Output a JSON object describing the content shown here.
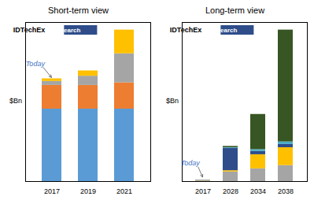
{
  "chart_data": [
    {
      "type": "bar",
      "stacked": true,
      "title": "Short-term view",
      "ylabel": "$Bn",
      "categories": [
        "2017",
        "2019",
        "2021"
      ],
      "series": [
        {
          "color": "#5B9BD5",
          "values": [
            5.5,
            5.5,
            5.5
          ]
        },
        {
          "color": "#ED7D31",
          "values": [
            1.8,
            1.8,
            2.0
          ]
        },
        {
          "color": "#A5A5A5",
          "values": [
            0.3,
            0.7,
            2.2
          ]
        },
        {
          "color": "#FFC000",
          "values": [
            0.2,
            0.4,
            1.8
          ]
        }
      ],
      "ylim": [
        0,
        12.075
      ],
      "tick_labels": "x",
      "grid": false,
      "annotations": [
        {
          "text": "Today",
          "x": "2017",
          "y": 7.8,
          "color": "#4472C4"
        },
        {
          "text": "IDTechEx"
        },
        {
          "text": "Research",
          "color": "#2E4D8A"
        }
      ]
    },
    {
      "type": "bar",
      "stacked": true,
      "title": "Long-term view",
      "ylabel": "$Bn",
      "categories": [
        "2017",
        "2028",
        "2034",
        "2038"
      ],
      "series": [
        {
          "color": "#A5A5A5",
          "values": [
            0.1,
            1.5,
            2.0,
            2.5
          ]
        },
        {
          "color": "#FFC000",
          "values": [
            0.05,
            0.2,
            2.2,
            2.8
          ]
        },
        {
          "color": "#2E4D8A",
          "values": [
            0.05,
            3.5,
            0.5,
            0.5
          ]
        },
        {
          "color": "#4BACC6",
          "values": [
            0.0,
            0.1,
            0.3,
            0.4
          ]
        },
        {
          "color": "#375623",
          "values": [
            0.0,
            0.2,
            5.5,
            17.5
          ]
        }
      ],
      "ylim": [
        0,
        24.885
      ],
      "tick_labels": "x",
      "grid": false,
      "annotations": [
        {
          "text": "Today",
          "x": "2017",
          "y": 0.5,
          "color": "#4472C4"
        },
        {
          "text": "IDTechEx"
        },
        {
          "text": "Research",
          "color": "#2E4D8A"
        }
      ]
    }
  ]
}
